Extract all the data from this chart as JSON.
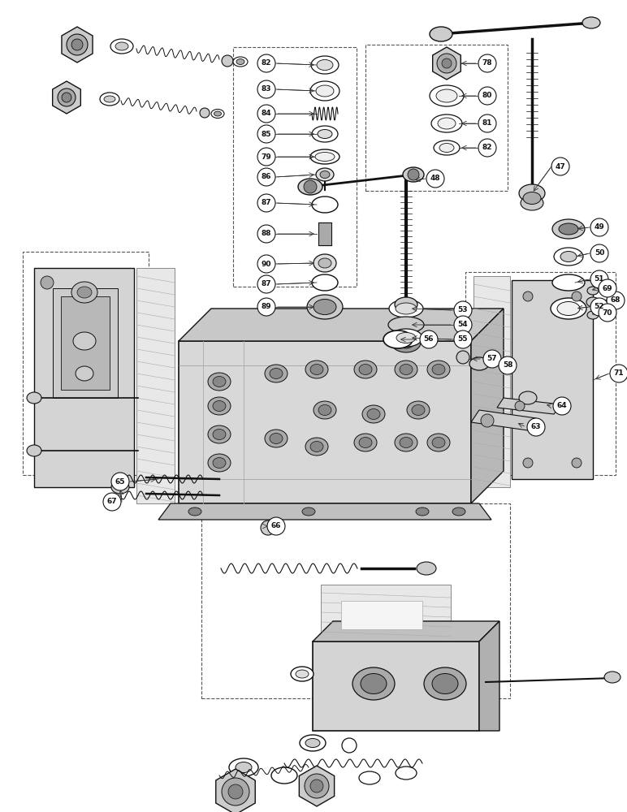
{
  "background_color": "#ffffff",
  "fig_width": 7.72,
  "fig_height": 10.0,
  "dpi": 100,
  "lc": "#111111",
  "lc2": "#333333"
}
